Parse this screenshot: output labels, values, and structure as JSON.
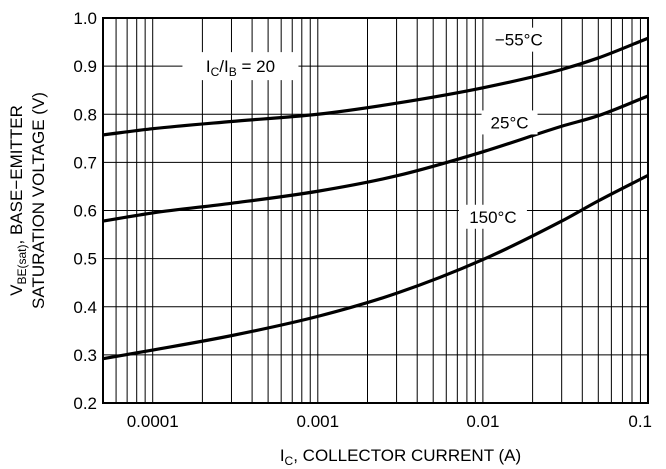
{
  "chart_data": {
    "type": "line",
    "x_scale": "log",
    "y_scale": "linear",
    "xlim": [
      5e-05,
      0.1
    ],
    "ylim": [
      0.2,
      1.0
    ],
    "grid": true,
    "x_ticks": [
      {
        "value": 0.0001,
        "label": "0.0001"
      },
      {
        "value": 0.001,
        "label": "0.001"
      },
      {
        "value": 0.01,
        "label": "0.01"
      },
      {
        "value": 0.1,
        "label": "0.1"
      }
    ],
    "y_ticks": [
      {
        "value": 0.2,
        "label": "0.2"
      },
      {
        "value": 0.3,
        "label": "0.3"
      },
      {
        "value": 0.4,
        "label": "0.4"
      },
      {
        "value": 0.5,
        "label": "0.5"
      },
      {
        "value": 0.6,
        "label": "0.6"
      },
      {
        "value": 0.7,
        "label": "0.7"
      },
      {
        "value": 0.8,
        "label": "0.8"
      },
      {
        "value": 0.9,
        "label": "0.9"
      },
      {
        "value": 1.0,
        "label": "1.0"
      }
    ],
    "xlabel": {
      "main": "I",
      "sub": "C",
      "rest": ", COLLECTOR CURRENT (A)"
    },
    "ylabel": {
      "line1_main": "V",
      "line1_sub": "BE(sat)",
      "line1_rest": ", BASE−EMITTER",
      "line2": "SATURATION VOLTAGE (V)"
    },
    "condition_label": {
      "p1": "I",
      "s1": "C",
      "p2": "/I",
      "s2": "B",
      "p3": " = 20"
    },
    "series": [
      {
        "name": "−55°C",
        "x": [
          5e-05,
          0.0001,
          0.0003,
          0.001,
          0.003,
          0.01,
          0.03,
          0.05,
          0.1
        ],
        "y": [
          0.757,
          0.77,
          0.785,
          0.8,
          0.823,
          0.855,
          0.893,
          0.917,
          0.958
        ]
      },
      {
        "name": "25°C",
        "x": [
          5e-05,
          0.0001,
          0.0003,
          0.001,
          0.003,
          0.01,
          0.03,
          0.05,
          0.1
        ],
        "y": [
          0.578,
          0.595,
          0.615,
          0.64,
          0.672,
          0.722,
          0.775,
          0.797,
          0.838
        ]
      },
      {
        "name": "150°C",
        "x": [
          5e-05,
          0.0001,
          0.0003,
          0.001,
          0.003,
          0.01,
          0.03,
          0.05,
          0.1
        ],
        "y": [
          0.292,
          0.31,
          0.34,
          0.38,
          0.428,
          0.498,
          0.578,
          0.62,
          0.673
        ]
      }
    ]
  }
}
